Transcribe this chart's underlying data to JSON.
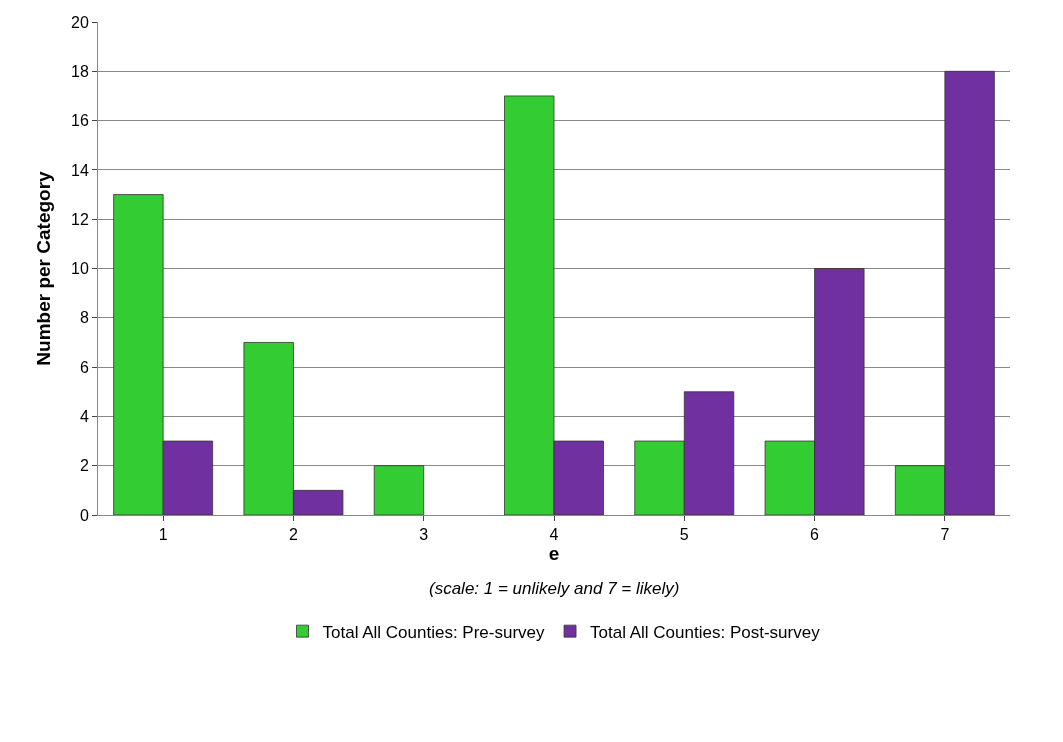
{
  "chart_data": {
    "type": "bar",
    "xlabel": "e",
    "ylabel": "Number per Category",
    "categories": [
      "1",
      "2",
      "3",
      "4",
      "5",
      "6",
      "7"
    ],
    "series": [
      {
        "name": "Total All Counties: Pre-survey",
        "color": "#33cc33",
        "values": [
          13,
          7,
          2,
          17,
          3,
          3,
          2
        ]
      },
      {
        "name": "Total All Counties: Post-survey",
        "color": "#7030a0",
        "values": [
          3,
          1,
          0,
          3,
          5,
          10,
          18
        ]
      }
    ],
    "ylim": [
      0,
      20
    ],
    "yticks": [
      0,
      2,
      4,
      6,
      8,
      10,
      12,
      14,
      16,
      18,
      20
    ],
    "grid": "y",
    "legend": "bottom",
    "annotations": [
      "(scale: 1 = unlikely and 7 = likely)"
    ]
  }
}
